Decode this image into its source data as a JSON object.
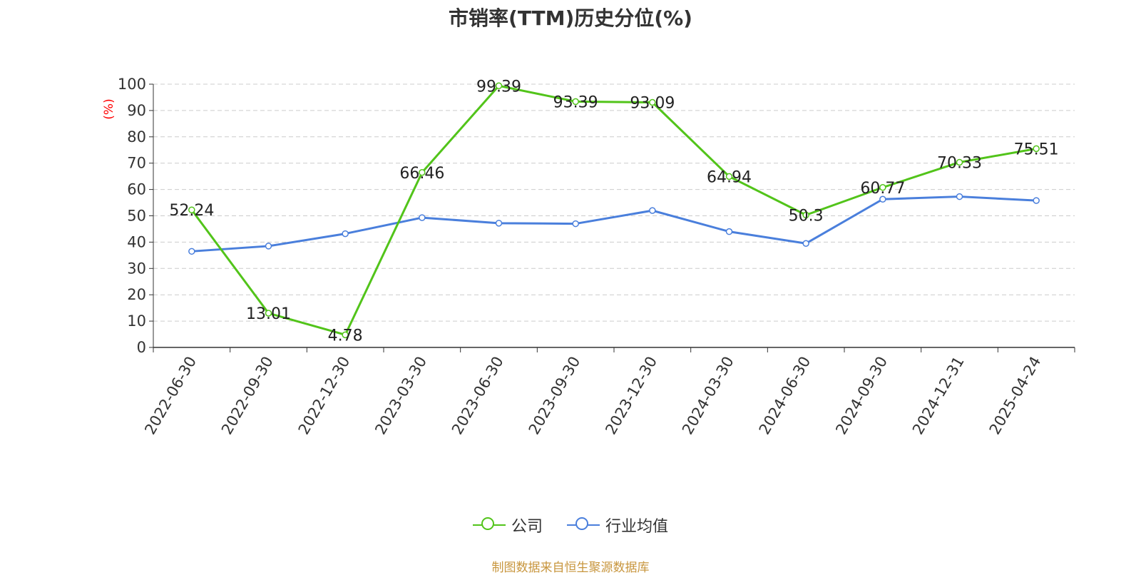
{
  "chart_data": {
    "type": "line",
    "title": "市销率(TTM)历史分位(%)",
    "ylabel": "(%)",
    "xlabel": "",
    "ylim": [
      0,
      100
    ],
    "yticks": [
      0,
      10,
      20,
      30,
      40,
      50,
      60,
      70,
      80,
      90,
      100
    ],
    "grid": true,
    "legend_position": "bottom",
    "x": [
      "2022-06-30",
      "2022-09-30",
      "2022-12-30",
      "2023-03-30",
      "2023-06-30",
      "2023-09-30",
      "2023-12-30",
      "2024-03-30",
      "2024-06-30",
      "2024-09-30",
      "2024-12-31",
      "2025-04-24"
    ],
    "series": [
      {
        "name": "公司",
        "color": "#52c41a",
        "values": [
          52.24,
          13.01,
          4.78,
          66.46,
          99.39,
          93.39,
          93.09,
          64.94,
          50.3,
          60.77,
          70.33,
          75.51
        ],
        "labels": [
          "52.24",
          "13.01",
          "4.78",
          "66.46",
          "99.39",
          "93.39",
          "93.09",
          "64.94",
          "50.3",
          "60.77",
          "70.33",
          "75.51"
        ]
      },
      {
        "name": "行业均值",
        "color": "#4a7fdc",
        "values": [
          36.5,
          38.5,
          43.2,
          49.3,
          47.2,
          47.0,
          52.0,
          44.0,
          39.5,
          56.3,
          57.3,
          55.8
        ]
      }
    ]
  },
  "source": "制图数据来自恒生聚源数据库",
  "colors": {
    "source_text": "#c8963e",
    "ylabel_text": "#ff0000",
    "grid": "#cccccc",
    "axis": "#333333"
  }
}
